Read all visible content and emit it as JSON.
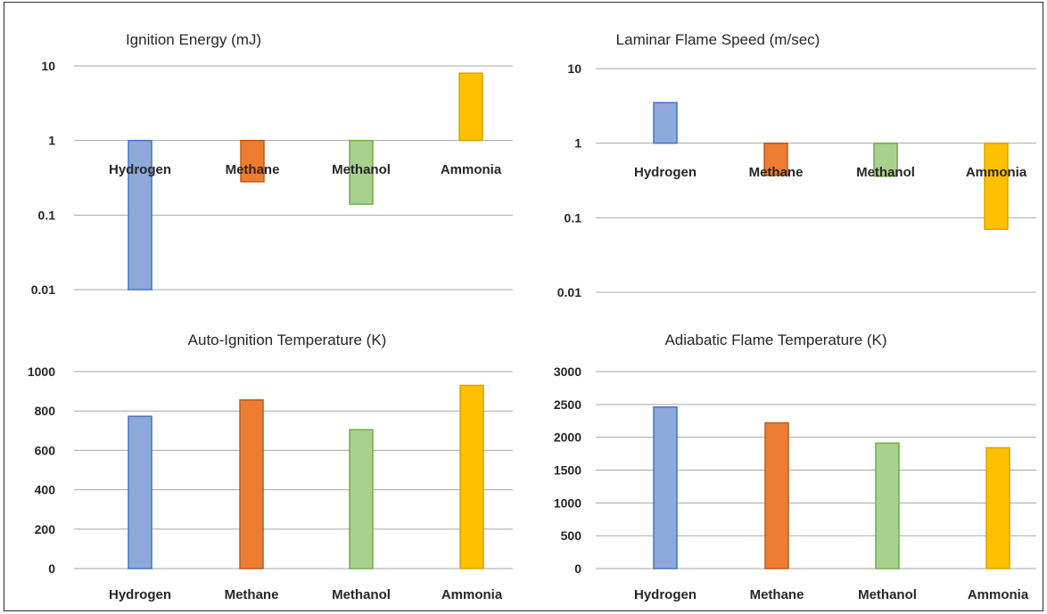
{
  "colors": {
    "Hydrogen": {
      "fill": "#8eaadb",
      "stroke": "#4472c4"
    },
    "Methane": {
      "fill": "#ed7d31",
      "stroke": "#b85c1f"
    },
    "Methanol": {
      "fill": "#a9d18e",
      "stroke": "#70ad47"
    },
    "Ammonia": {
      "fill": "#ffc000",
      "stroke": "#d9a300"
    }
  },
  "chart_data": [
    {
      "type": "bar",
      "title": "Ignition Energy (mJ)",
      "scale": "log",
      "baseline": 1,
      "ylim": [
        0.01,
        10
      ],
      "yticks": [
        "0.01",
        "0.1",
        "1",
        "10"
      ],
      "categories": [
        "Hydrogen",
        "Methane",
        "Methanol",
        "Ammonia"
      ],
      "values": [
        0.01,
        0.28,
        0.14,
        8
      ],
      "grid": true
    },
    {
      "type": "bar",
      "title": "Laminar Flame Speed (m/sec)",
      "scale": "log",
      "baseline": 1,
      "ylim": [
        0.01,
        10
      ],
      "yticks": [
        "0.01",
        "0.1",
        "1",
        "10"
      ],
      "categories": [
        "Hydrogen",
        "Methane",
        "Methanol",
        "Ammonia"
      ],
      "values": [
        3.5,
        0.37,
        0.36,
        0.07
      ],
      "grid": true
    },
    {
      "type": "bar",
      "title": "Auto-Ignition Temperature (K)",
      "scale": "linear",
      "ylim": [
        0,
        1000
      ],
      "yticks": [
        "0",
        "200",
        "400",
        "600",
        "800",
        "1000"
      ],
      "categories": [
        "Hydrogen",
        "Methane",
        "Methanol",
        "Ammonia"
      ],
      "values": [
        773,
        856,
        705,
        930
      ],
      "grid": true
    },
    {
      "type": "bar",
      "title": "Adiabatic Flame Temperature (K)",
      "scale": "linear",
      "ylim": [
        0,
        3000
      ],
      "yticks": [
        "0",
        "500",
        "1000",
        "1500",
        "2000",
        "2500",
        "3000"
      ],
      "categories": [
        "Hydrogen",
        "Methane",
        "Methanol",
        "Ammonia"
      ],
      "values": [
        2460,
        2220,
        1910,
        1840
      ],
      "grid": true
    }
  ]
}
